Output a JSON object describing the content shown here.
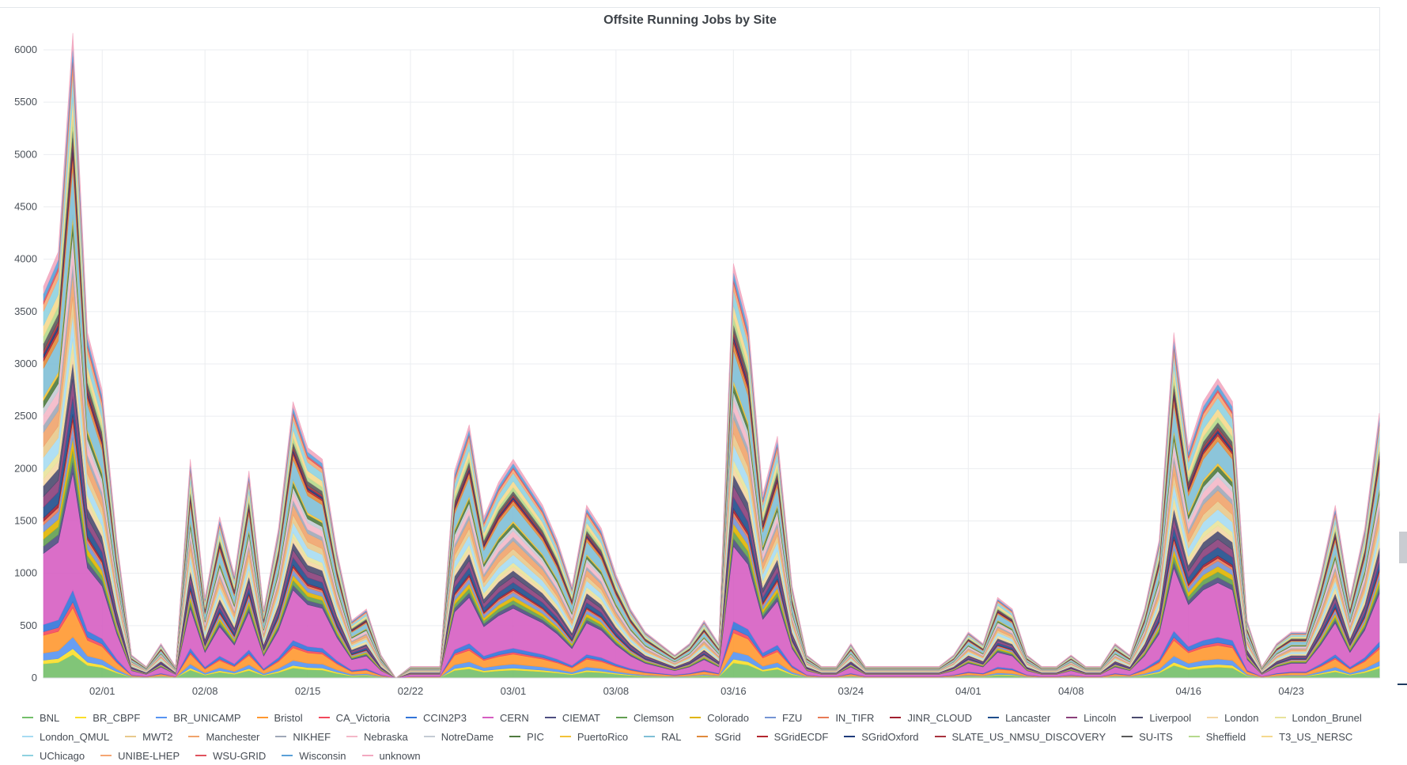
{
  "panel": {
    "title": "Offsite Running Jobs by Site"
  },
  "chart_data": {
    "type": "area",
    "stacked": true,
    "title": "Offsite Running Jobs by Site",
    "xlabel": "",
    "ylabel": "",
    "ylim": [
      0,
      6000
    ],
    "yticks": [
      0,
      500,
      1000,
      1500,
      2000,
      2500,
      3000,
      3500,
      4000,
      4500,
      5000,
      5500,
      6000
    ],
    "xlim": [
      "01/28",
      "04/30"
    ],
    "xticks": [
      "02/01",
      "02/08",
      "02/15",
      "02/22",
      "03/01",
      "03/08",
      "03/16",
      "03/24",
      "04/01",
      "04/08",
      "04/16",
      "04/23"
    ],
    "grid": true,
    "legend_position": "bottom",
    "x": [
      "01/28",
      "01/29",
      "01/30",
      "01/31",
      "02/01",
      "02/02",
      "02/03",
      "02/04",
      "02/05",
      "02/06",
      "02/07",
      "02/08",
      "02/09",
      "02/10",
      "02/11",
      "02/12",
      "02/13",
      "02/14",
      "02/15",
      "02/16",
      "02/17",
      "02/18",
      "02/19",
      "02/20",
      "02/21",
      "02/22",
      "02/23",
      "02/24",
      "02/25",
      "02/26",
      "02/27",
      "02/28",
      "03/01",
      "03/02",
      "03/03",
      "03/04",
      "03/05",
      "03/06",
      "03/07",
      "03/08",
      "03/09",
      "03/10",
      "03/11",
      "03/12",
      "03/13",
      "03/14",
      "03/15",
      "03/16",
      "03/17",
      "03/18",
      "03/19",
      "03/20",
      "03/21",
      "03/22",
      "03/23",
      "03/24",
      "03/25",
      "03/26",
      "03/27",
      "03/28",
      "03/29",
      "03/30",
      "03/31",
      "04/01",
      "04/02",
      "04/03",
      "04/04",
      "04/05",
      "04/06",
      "04/07",
      "04/08",
      "04/09",
      "04/10",
      "04/11",
      "04/12",
      "04/13",
      "04/14",
      "04/15",
      "04/16",
      "04/17",
      "04/18",
      "04/19",
      "04/20",
      "04/21",
      "04/22",
      "04/23",
      "04/24",
      "04/25",
      "04/26",
      "04/27",
      "04/28",
      "04/29"
    ],
    "totals": [
      3400,
      3700,
      5600,
      3000,
      2500,
      1200,
      200,
      100,
      300,
      100,
      1900,
      700,
      1400,
      900,
      1800,
      600,
      1300,
      2400,
      2000,
      1900,
      1100,
      500,
      600,
      200,
      0,
      100,
      100,
      100,
      1800,
      2200,
      1400,
      1700,
      1900,
      1700,
      1500,
      1200,
      800,
      1500,
      1300,
      900,
      600,
      400,
      300,
      200,
      300,
      500,
      300,
      3600,
      3100,
      1600,
      2100,
      800,
      200,
      100,
      100,
      300,
      100,
      100,
      100,
      100,
      100,
      100,
      200,
      400,
      300,
      700,
      600,
      200,
      100,
      100,
      200,
      100,
      100,
      300,
      200,
      600,
      1200,
      3000,
      2000,
      2400,
      2600,
      2400,
      500,
      100,
      300,
      400,
      400,
      900,
      1500,
      700,
      1300,
      2300
    ],
    "series": [
      {
        "name": "BNL",
        "color": "#73bf69",
        "share": 0.04
      },
      {
        "name": "BR_CBPF",
        "color": "#fade2a",
        "share": 0.01
      },
      {
        "name": "BR_UNICAMP",
        "color": "#5794f2",
        "share": 0.02
      },
      {
        "name": "Bristol",
        "color": "#ff9830",
        "share": 0.05
      },
      {
        "name": "CA_Victoria",
        "color": "#f2495c",
        "share": 0.01
      },
      {
        "name": "CCIN2P3",
        "color": "#3274d9",
        "share": 0.02
      },
      {
        "name": "CERN",
        "color": "#d65ec2",
        "share": 0.2
      },
      {
        "name": "CIEMAT",
        "color": "#4d4d80",
        "share": 0.02
      },
      {
        "name": "Clemson",
        "color": "#629e51",
        "share": 0.02
      },
      {
        "name": "Colorado",
        "color": "#e0b400",
        "share": 0.02
      },
      {
        "name": "FZU",
        "color": "#7494d4",
        "share": 0.02
      },
      {
        "name": "IN_TIFR",
        "color": "#e87b56",
        "share": 0.01
      },
      {
        "name": "JINR_CLOUD",
        "color": "#a11f2f",
        "share": 0.01
      },
      {
        "name": "Lancaster",
        "color": "#1f4e8c",
        "share": 0.03
      },
      {
        "name": "Lincoln",
        "color": "#8a3f7a",
        "share": 0.03
      },
      {
        "name": "Liverpool",
        "color": "#4a4a6e",
        "share": 0.03
      },
      {
        "name": "London",
        "color": "#f4d7a5",
        "share": 0.02
      },
      {
        "name": "London_Brunel",
        "color": "#e8e39b",
        "share": 0.02
      },
      {
        "name": "London_QMUL",
        "color": "#a7dbf2",
        "share": 0.04
      },
      {
        "name": "MWT2",
        "color": "#e8c98c",
        "share": 0.03
      },
      {
        "name": "Manchester",
        "color": "#f0a36b",
        "share": 0.04
      },
      {
        "name": "NIKHEF",
        "color": "#9fa8b8",
        "share": 0.02
      },
      {
        "name": "Nebraska",
        "color": "#f4b8c8",
        "share": 0.03
      },
      {
        "name": "NotreDame",
        "color": "#c4cbd4",
        "share": 0.02
      },
      {
        "name": "PIC",
        "color": "#4f7a3f",
        "share": 0.02
      },
      {
        "name": "PuertoRico",
        "color": "#f2c237",
        "share": 0.01
      },
      {
        "name": "RAL",
        "color": "#7fbfd6",
        "share": 0.08
      },
      {
        "name": "SGrid",
        "color": "#e08a3c",
        "share": 0.02
      },
      {
        "name": "SGridECDF",
        "color": "#b3262e",
        "share": 0.01
      },
      {
        "name": "SGridOxford",
        "color": "#1e3a7a",
        "share": 0.01
      },
      {
        "name": "SLATE_US_NMSU_DISCOVERY",
        "color": "#a8323e",
        "share": 0.01
      },
      {
        "name": "SU-ITS",
        "color": "#5a5a5a",
        "share": 0.02
      },
      {
        "name": "Sheffield",
        "color": "#b5d98c",
        "share": 0.02
      },
      {
        "name": "T3_US_NERSC",
        "color": "#f5d98e",
        "share": 0.03
      },
      {
        "name": "UChicago",
        "color": "#8fd1e0",
        "share": 0.04
      },
      {
        "name": "UNIBE-LHEP",
        "color": "#f5a673",
        "share": 0.02
      },
      {
        "name": "WSU-GRID",
        "color": "#e0535e",
        "share": 0.01
      },
      {
        "name": "Wisconsin",
        "color": "#5aa0d8",
        "share": 0.02
      },
      {
        "name": "unknown",
        "color": "#f2a8c0",
        "share": 0.02
      }
    ]
  }
}
